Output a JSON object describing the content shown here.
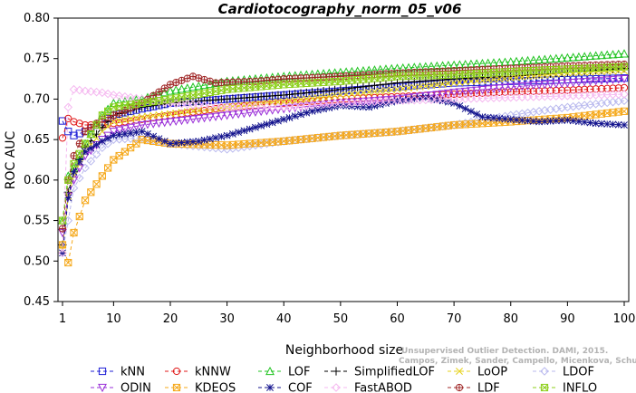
{
  "chart_data": {
    "type": "line",
    "title": "Cardiotocography_norm_05_v06",
    "xlabel": "Neighborhood size",
    "ylabel": "ROC AUC",
    "xlim": [
      1,
      100
    ],
    "ylim": [
      0.45,
      0.8
    ],
    "xticks": [
      "1",
      "10",
      "20",
      "30",
      "40",
      "50",
      "60",
      "70",
      "80",
      "90",
      "100"
    ],
    "yticks": [
      "0.45",
      "0.50",
      "0.55",
      "0.60",
      "0.65",
      "0.70",
      "0.75",
      "0.80"
    ],
    "legend_position": "bottom",
    "series": [
      {
        "name": "kNN",
        "color": "#1f1fd6",
        "marker": "square",
        "points": [
          [
            1,
            0.673
          ],
          [
            2,
            0.66
          ],
          [
            3,
            0.655
          ],
          [
            5,
            0.66
          ],
          [
            8,
            0.672
          ],
          [
            10,
            0.68
          ],
          [
            15,
            0.688
          ],
          [
            20,
            0.695
          ],
          [
            30,
            0.7
          ],
          [
            40,
            0.705
          ],
          [
            50,
            0.71
          ],
          [
            60,
            0.715
          ],
          [
            70,
            0.72
          ],
          [
            80,
            0.722
          ],
          [
            90,
            0.724
          ],
          [
            100,
            0.726
          ]
        ]
      },
      {
        "name": "kNNW",
        "color": "#e01818",
        "marker": "circle",
        "points": [
          [
            1,
            0.652
          ],
          [
            2,
            0.676
          ],
          [
            3,
            0.672
          ],
          [
            5,
            0.668
          ],
          [
            8,
            0.668
          ],
          [
            10,
            0.67
          ],
          [
            15,
            0.675
          ],
          [
            20,
            0.68
          ],
          [
            30,
            0.69
          ],
          [
            40,
            0.695
          ],
          [
            50,
            0.7
          ],
          [
            60,
            0.703
          ],
          [
            70,
            0.706
          ],
          [
            80,
            0.709
          ],
          [
            90,
            0.711
          ],
          [
            100,
            0.714
          ]
        ]
      },
      {
        "name": "LOF",
        "color": "#22c422",
        "marker": "triangle",
        "points": [
          [
            1,
            0.55
          ],
          [
            2,
            0.605
          ],
          [
            3,
            0.615
          ],
          [
            5,
            0.645
          ],
          [
            8,
            0.68
          ],
          [
            10,
            0.695
          ],
          [
            15,
            0.7
          ],
          [
            20,
            0.71
          ],
          [
            30,
            0.722
          ],
          [
            40,
            0.728
          ],
          [
            50,
            0.733
          ],
          [
            60,
            0.738
          ],
          [
            70,
            0.742
          ],
          [
            80,
            0.746
          ],
          [
            90,
            0.751
          ],
          [
            100,
            0.756
          ]
        ]
      },
      {
        "name": "SimplifiedLOF",
        "color": "#000000",
        "marker": "plus",
        "points": [
          [
            1,
            0.52
          ],
          [
            2,
            0.585
          ],
          [
            3,
            0.61
          ],
          [
            5,
            0.64
          ],
          [
            8,
            0.665
          ],
          [
            10,
            0.68
          ],
          [
            15,
            0.69
          ],
          [
            20,
            0.695
          ],
          [
            30,
            0.7
          ],
          [
            40,
            0.705
          ],
          [
            50,
            0.712
          ],
          [
            60,
            0.72
          ],
          [
            70,
            0.725
          ],
          [
            80,
            0.728
          ],
          [
            90,
            0.733
          ],
          [
            100,
            0.738
          ]
        ]
      },
      {
        "name": "LoOP",
        "color": "#e6d21a",
        "marker": "x",
        "points": [
          [
            1,
            0.515
          ],
          [
            2,
            0.58
          ],
          [
            3,
            0.605
          ],
          [
            5,
            0.635
          ],
          [
            8,
            0.66
          ],
          [
            10,
            0.672
          ],
          [
            15,
            0.678
          ],
          [
            20,
            0.682
          ],
          [
            30,
            0.69
          ],
          [
            40,
            0.697
          ],
          [
            50,
            0.705
          ],
          [
            60,
            0.712
          ],
          [
            70,
            0.72
          ],
          [
            80,
            0.726
          ],
          [
            90,
            0.732
          ],
          [
            100,
            0.735
          ]
        ]
      },
      {
        "name": "LDOF",
        "color": "#b9b9ee",
        "marker": "diamond",
        "points": [
          [
            1,
            0.51
          ],
          [
            2,
            0.55
          ],
          [
            3,
            0.59
          ],
          [
            5,
            0.615
          ],
          [
            8,
            0.64
          ],
          [
            10,
            0.65
          ],
          [
            15,
            0.652
          ],
          [
            20,
            0.645
          ],
          [
            30,
            0.638
          ],
          [
            40,
            0.648
          ],
          [
            50,
            0.655
          ],
          [
            60,
            0.66
          ],
          [
            70,
            0.668
          ],
          [
            80,
            0.68
          ],
          [
            90,
            0.69
          ],
          [
            100,
            0.698
          ]
        ]
      },
      {
        "name": "ODIN",
        "color": "#9a2fd8",
        "marker": "triangle-down",
        "points": [
          [
            1,
            0.535
          ],
          [
            2,
            0.58
          ],
          [
            3,
            0.6
          ],
          [
            5,
            0.63
          ],
          [
            8,
            0.65
          ],
          [
            10,
            0.66
          ],
          [
            15,
            0.668
          ],
          [
            20,
            0.672
          ],
          [
            30,
            0.68
          ],
          [
            40,
            0.688
          ],
          [
            50,
            0.695
          ],
          [
            60,
            0.7
          ],
          [
            70,
            0.708
          ],
          [
            80,
            0.715
          ],
          [
            90,
            0.72
          ],
          [
            100,
            0.725
          ]
        ]
      },
      {
        "name": "KDEOS",
        "color": "#f5a81a",
        "marker": "square-x",
        "points": [
          [
            1,
            0.52
          ],
          [
            2,
            0.498
          ],
          [
            3,
            0.535
          ],
          [
            5,
            0.575
          ],
          [
            8,
            0.605
          ],
          [
            10,
            0.625
          ],
          [
            15,
            0.65
          ],
          [
            20,
            0.645
          ],
          [
            30,
            0.643
          ],
          [
            40,
            0.648
          ],
          [
            50,
            0.655
          ],
          [
            60,
            0.66
          ],
          [
            70,
            0.668
          ],
          [
            80,
            0.672
          ],
          [
            90,
            0.677
          ],
          [
            100,
            0.685
          ]
        ]
      },
      {
        "name": "COF",
        "color": "#14148e",
        "marker": "star",
        "points": [
          [
            1,
            0.51
          ],
          [
            2,
            0.578
          ],
          [
            3,
            0.61
          ],
          [
            5,
            0.635
          ],
          [
            8,
            0.648
          ],
          [
            10,
            0.655
          ],
          [
            15,
            0.66
          ],
          [
            20,
            0.645
          ],
          [
            25,
            0.648
          ],
          [
            30,
            0.655
          ],
          [
            35,
            0.665
          ],
          [
            40,
            0.675
          ],
          [
            45,
            0.685
          ],
          [
            50,
            0.692
          ],
          [
            55,
            0.69
          ],
          [
            60,
            0.698
          ],
          [
            65,
            0.702
          ],
          [
            70,
            0.695
          ],
          [
            75,
            0.678
          ],
          [
            80,
            0.675
          ],
          [
            85,
            0.672
          ],
          [
            90,
            0.674
          ],
          [
            95,
            0.67
          ],
          [
            100,
            0.668
          ]
        ]
      },
      {
        "name": "FastABOD",
        "color": "#f5b8f0",
        "marker": "diamond",
        "points": [
          [
            1,
            0.51
          ],
          [
            2,
            0.69
          ],
          [
            3,
            0.712
          ],
          [
            5,
            0.71
          ],
          [
            8,
            0.708
          ],
          [
            10,
            0.705
          ],
          [
            15,
            0.7
          ],
          [
            20,
            0.695
          ],
          [
            30,
            0.69
          ],
          [
            40,
            0.69
          ],
          [
            50,
            0.695
          ],
          [
            60,
            0.698
          ],
          [
            70,
            0.7
          ],
          [
            80,
            0.702
          ],
          [
            90,
            0.704
          ],
          [
            100,
            0.706
          ]
        ]
      },
      {
        "name": "LDF",
        "color": "#a02828",
        "marker": "circle-plus",
        "points": [
          [
            1,
            0.54
          ],
          [
            2,
            0.6
          ],
          [
            3,
            0.63
          ],
          [
            5,
            0.66
          ],
          [
            8,
            0.675
          ],
          [
            10,
            0.68
          ],
          [
            15,
            0.695
          ],
          [
            20,
            0.718
          ],
          [
            24,
            0.728
          ],
          [
            28,
            0.72
          ],
          [
            35,
            0.722
          ],
          [
            40,
            0.725
          ],
          [
            50,
            0.728
          ],
          [
            60,
            0.732
          ],
          [
            70,
            0.735
          ],
          [
            80,
            0.738
          ],
          [
            90,
            0.741
          ],
          [
            100,
            0.743
          ]
        ]
      },
      {
        "name": "INFLO",
        "color": "#8ccf1a",
        "marker": "square-x",
        "points": [
          [
            1,
            0.55
          ],
          [
            2,
            0.6
          ],
          [
            3,
            0.62
          ],
          [
            5,
            0.645
          ],
          [
            8,
            0.68
          ],
          [
            10,
            0.69
          ],
          [
            15,
            0.695
          ],
          [
            20,
            0.7
          ],
          [
            30,
            0.712
          ],
          [
            40,
            0.718
          ],
          [
            50,
            0.722
          ],
          [
            60,
            0.728
          ],
          [
            70,
            0.73
          ],
          [
            80,
            0.734
          ],
          [
            90,
            0.737
          ],
          [
            100,
            0.74
          ]
        ]
      }
    ]
  },
  "watermark": {
    "line1": "Unsupervised Outlier Detection. DAMI, 2015.",
    "line2": "Campos, Zimek, Sander, Campello, Micenkova, Schubert, Assent, Houle"
  }
}
